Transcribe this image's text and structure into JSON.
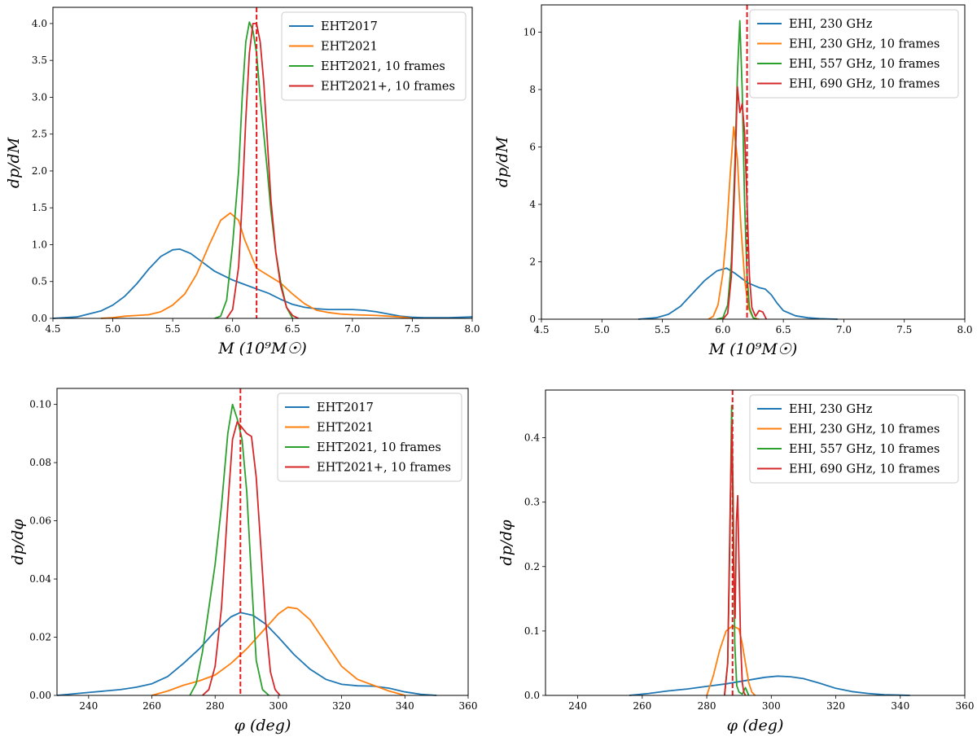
{
  "colors": {
    "blue": "#1f77b4",
    "orange": "#ff7f0e",
    "green": "#2ca02c",
    "red": "#d62728",
    "reference": "#e41a1c"
  },
  "chart_data": [
    {
      "type": "line",
      "xlabel": "M (10⁹M☉)",
      "ylabel": "dp/dM",
      "xlim": [
        4.5,
        8.0
      ],
      "ylim": [
        0,
        4.22
      ],
      "xticks": [
        "4.5",
        "5.0",
        "5.5",
        "6.0",
        "6.5",
        "7.0",
        "7.5",
        "8.0"
      ],
      "yticks": [
        "0.0",
        "0.5",
        "1.0",
        "1.5",
        "2.0",
        "2.5",
        "3.0",
        "3.5",
        "4.0"
      ],
      "reference_line_x": 6.2,
      "legend_position": "top-right",
      "series": [
        {
          "name": "EHT2017",
          "color": "blue",
          "x": [
            4.5,
            4.7,
            4.9,
            5.0,
            5.1,
            5.2,
            5.3,
            5.4,
            5.5,
            5.56,
            5.65,
            5.75,
            5.85,
            6.0,
            6.1,
            6.2,
            6.3,
            6.4,
            6.5,
            6.6,
            6.7,
            6.8,
            6.9,
            7.0,
            7.1,
            7.2,
            7.3,
            7.4,
            7.5,
            7.6,
            7.7,
            7.8,
            8.0
          ],
          "y": [
            0.0,
            0.02,
            0.1,
            0.18,
            0.3,
            0.47,
            0.67,
            0.84,
            0.93,
            0.94,
            0.88,
            0.76,
            0.64,
            0.52,
            0.46,
            0.4,
            0.34,
            0.26,
            0.19,
            0.15,
            0.13,
            0.12,
            0.12,
            0.12,
            0.11,
            0.09,
            0.06,
            0.03,
            0.015,
            0.01,
            0.01,
            0.01,
            0.02
          ]
        },
        {
          "name": "EHT2021",
          "color": "orange",
          "x": [
            4.9,
            5.0,
            5.1,
            5.2,
            5.3,
            5.4,
            5.5,
            5.6,
            5.7,
            5.8,
            5.9,
            5.98,
            6.05,
            6.1,
            6.2,
            6.3,
            6.4,
            6.5,
            6.6,
            6.7,
            6.8,
            6.9,
            7.0,
            7.2,
            7.4,
            7.5
          ],
          "y": [
            0.0,
            0.01,
            0.03,
            0.04,
            0.05,
            0.09,
            0.18,
            0.33,
            0.6,
            0.98,
            1.33,
            1.43,
            1.33,
            1.07,
            0.68,
            0.58,
            0.48,
            0.33,
            0.2,
            0.11,
            0.08,
            0.06,
            0.05,
            0.04,
            0.02,
            0.0
          ]
        },
        {
          "name": "EHT2021, 10 frames",
          "color": "green",
          "x": [
            5.85,
            5.9,
            5.95,
            6.0,
            6.05,
            6.08,
            6.11,
            6.14,
            6.17,
            6.2,
            6.23,
            6.26,
            6.29,
            6.32,
            6.36,
            6.4,
            6.45,
            6.5
          ],
          "y": [
            0.0,
            0.03,
            0.25,
            1.0,
            2.0,
            3.0,
            3.75,
            4.02,
            3.9,
            3.6,
            3.0,
            2.5,
            2.0,
            1.45,
            0.9,
            0.5,
            0.15,
            0.0
          ]
        },
        {
          "name": "EHT2021+, 10 frames",
          "color": "red",
          "x": [
            5.95,
            6.0,
            6.05,
            6.08,
            6.11,
            6.14,
            6.17,
            6.2,
            6.23,
            6.26,
            6.29,
            6.32,
            6.36,
            6.4,
            6.45,
            6.5,
            6.55
          ],
          "y": [
            0.0,
            0.12,
            0.7,
            1.6,
            2.7,
            3.6,
            4.0,
            4.0,
            3.75,
            3.2,
            2.4,
            1.6,
            0.9,
            0.45,
            0.15,
            0.04,
            0.0
          ]
        }
      ]
    },
    {
      "type": "line",
      "xlabel": "M (10⁹M☉)",
      "ylabel": "dp/dM",
      "xlim": [
        4.5,
        8.0
      ],
      "ylim": [
        0,
        10.95
      ],
      "xticks": [
        "4.5",
        "5.0",
        "5.5",
        "6.0",
        "6.5",
        "7.0",
        "7.5",
        "8.0"
      ],
      "yticks": [
        "0",
        "2",
        "4",
        "6",
        "8",
        "10"
      ],
      "reference_line_x": 6.2,
      "legend_position": "top-right",
      "series": [
        {
          "name": "EHI, 230 GHz",
          "color": "blue",
          "x": [
            5.3,
            5.45,
            5.55,
            5.65,
            5.75,
            5.85,
            5.95,
            6.03,
            6.1,
            6.2,
            6.3,
            6.35,
            6.4,
            6.45,
            6.5,
            6.6,
            6.7,
            6.8,
            6.95
          ],
          "y": [
            0.0,
            0.05,
            0.17,
            0.45,
            0.9,
            1.35,
            1.68,
            1.78,
            1.6,
            1.28,
            1.1,
            1.05,
            0.85,
            0.55,
            0.3,
            0.12,
            0.05,
            0.02,
            0.0
          ]
        },
        {
          "name": "EHI, 230 GHz, 10 frames",
          "color": "orange",
          "x": [
            5.88,
            5.92,
            5.96,
            6.0,
            6.03,
            6.06,
            6.09,
            6.12,
            6.15,
            6.18,
            6.21,
            6.25,
            6.3
          ],
          "y": [
            0.0,
            0.1,
            0.5,
            1.6,
            3.0,
            5.0,
            6.7,
            5.6,
            3.2,
            1.4,
            0.4,
            0.05,
            0.0
          ]
        },
        {
          "name": "EHI, 557 GHz, 10 frames",
          "color": "green",
          "x": [
            5.95,
            6.0,
            6.04,
            6.07,
            6.1,
            6.12,
            6.14,
            6.16,
            6.18,
            6.2,
            6.22,
            6.25,
            6.28
          ],
          "y": [
            0.0,
            0.05,
            0.5,
            2.0,
            5.5,
            8.5,
            10.4,
            8.0,
            4.0,
            1.5,
            0.4,
            0.05,
            0.0
          ]
        },
        {
          "name": "EHI, 690 GHz, 10 frames",
          "color": "red",
          "x": [
            6.0,
            6.04,
            6.07,
            6.1,
            6.12,
            6.14,
            6.16,
            6.18,
            6.2,
            6.22,
            6.24,
            6.27,
            6.3,
            6.33,
            6.36
          ],
          "y": [
            0.0,
            0.2,
            1.5,
            5.0,
            8.1,
            7.2,
            7.5,
            6.5,
            4.0,
            1.5,
            0.4,
            0.1,
            0.3,
            0.25,
            0.0
          ]
        }
      ]
    },
    {
      "type": "line",
      "xlabel": "φ (deg)",
      "ylabel": "dp/dφ",
      "xlim": [
        230,
        360
      ],
      "ylim": [
        0,
        0.1055
      ],
      "xticks": [
        "240",
        "260",
        "280",
        "300",
        "320",
        "340",
        "360"
      ],
      "yticks": [
        "0.00",
        "0.02",
        "0.04",
        "0.06",
        "0.08",
        "0.10"
      ],
      "reference_line_x": 288,
      "legend_position": "top-right",
      "series": [
        {
          "name": "EHT2017",
          "color": "blue",
          "x": [
            230,
            240,
            250,
            255,
            260,
            265,
            270,
            275,
            280,
            285,
            288,
            292,
            296,
            300,
            305,
            310,
            315,
            320,
            325,
            330,
            335,
            340,
            345,
            350
          ],
          "y": [
            0.0,
            0.001,
            0.002,
            0.0028,
            0.004,
            0.0065,
            0.011,
            0.016,
            0.022,
            0.027,
            0.0285,
            0.0275,
            0.0245,
            0.02,
            0.014,
            0.009,
            0.0055,
            0.0038,
            0.0033,
            0.0032,
            0.0025,
            0.0012,
            0.0004,
            0.0
          ]
        },
        {
          "name": "EHT2021",
          "color": "orange",
          "x": [
            260,
            265,
            270,
            275,
            280,
            285,
            290,
            295,
            300,
            303,
            306,
            310,
            315,
            320,
            325,
            330,
            335,
            340
          ],
          "y": [
            0.0,
            0.0015,
            0.0035,
            0.005,
            0.007,
            0.011,
            0.016,
            0.022,
            0.028,
            0.0303,
            0.0298,
            0.026,
            0.018,
            0.01,
            0.0055,
            0.0035,
            0.0015,
            0.0
          ]
        },
        {
          "name": "EHT2021, 10 frames",
          "color": "green",
          "x": [
            272,
            274,
            276,
            278,
            280,
            282,
            284,
            285.5,
            287,
            288.5,
            290,
            291.5,
            293,
            295,
            297
          ],
          "y": [
            0.0,
            0.004,
            0.015,
            0.03,
            0.045,
            0.065,
            0.09,
            0.1,
            0.095,
            0.088,
            0.07,
            0.04,
            0.012,
            0.002,
            0.0
          ]
        },
        {
          "name": "EHT2021+, 10 frames",
          "color": "red",
          "x": [
            276,
            278,
            280,
            282,
            284,
            285.5,
            287,
            288.5,
            290,
            291.5,
            293,
            294.5,
            296,
            297.5,
            299,
            300.5
          ],
          "y": [
            0.0,
            0.002,
            0.01,
            0.03,
            0.065,
            0.088,
            0.094,
            0.092,
            0.09,
            0.089,
            0.075,
            0.05,
            0.025,
            0.008,
            0.002,
            0.0
          ]
        }
      ]
    },
    {
      "type": "line",
      "xlabel": "φ (deg)",
      "ylabel": "dp/dφ",
      "xlim": [
        230,
        360
      ],
      "ylim": [
        0,
        0.474
      ],
      "xticks": [
        "240",
        "260",
        "280",
        "300",
        "320",
        "340",
        "360"
      ],
      "yticks": [
        "0.0",
        "0.1",
        "0.2",
        "0.3",
        "0.4"
      ],
      "reference_line_x": 288,
      "legend_position": "top-right",
      "series": [
        {
          "name": "EHI, 230 GHz",
          "color": "blue",
          "x": [
            256,
            262,
            268,
            274,
            280,
            286,
            292,
            298,
            302,
            306,
            310,
            315,
            320,
            325,
            330,
            335,
            340,
            343
          ],
          "y": [
            0.0,
            0.003,
            0.007,
            0.01,
            0.014,
            0.018,
            0.023,
            0.028,
            0.03,
            0.029,
            0.026,
            0.019,
            0.011,
            0.006,
            0.003,
            0.001,
            0.0004,
            0.0
          ]
        },
        {
          "name": "EHI, 230 GHz, 10 frames",
          "color": "orange",
          "x": [
            280,
            282,
            284,
            286,
            288,
            290,
            291,
            292,
            293,
            294,
            295
          ],
          "y": [
            0.0,
            0.03,
            0.07,
            0.1,
            0.108,
            0.103,
            0.08,
            0.05,
            0.02,
            0.005,
            0.0
          ]
        },
        {
          "name": "EHI, 557 GHz, 10 frames",
          "color": "green",
          "x": [
            285.5,
            286.5,
            287.2,
            287.7,
            288.2,
            288.7,
            289.3,
            290,
            291,
            292,
            293
          ],
          "y": [
            0.0,
            0.05,
            0.25,
            0.45,
            0.3,
            0.08,
            0.015,
            0.005,
            0.002,
            0.012,
            0.0
          ]
        },
        {
          "name": "EHI, 690 GHz, 10 frames",
          "color": "red",
          "x": [
            285.5,
            286.5,
            287.3,
            287.8,
            288.3,
            288.8,
            289.2,
            289.6,
            290,
            290.5,
            291,
            291.5,
            292
          ],
          "y": [
            0.0,
            0.05,
            0.3,
            0.42,
            0.2,
            0.12,
            0.27,
            0.31,
            0.2,
            0.08,
            0.02,
            0.005,
            0.0
          ]
        }
      ]
    }
  ]
}
